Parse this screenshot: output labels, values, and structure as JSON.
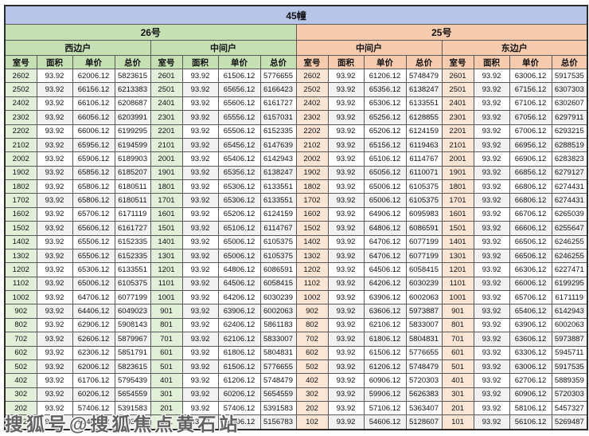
{
  "watermark": "搜狐号@搜狐焦点黄石站",
  "colors": {
    "title_bg": "#b7c5e9",
    "green_header_bg": "#c5e0b3",
    "orange_header_bg": "#f7cbad",
    "green_room_bg": "#e2efd9",
    "peach_room_bg": "#fbe5d5",
    "alt_row_bg": "#f2f2f2",
    "border": "#595959"
  },
  "table": {
    "title": "45幢",
    "groups": [
      {
        "label": "26号"
      },
      {
        "label": "25号"
      }
    ],
    "unit_headers": [
      "西边户",
      "中间户",
      "中间户",
      "东边户"
    ],
    "col_headers": [
      "室号",
      "面积",
      "单价",
      "总价"
    ],
    "rows": [
      [
        [
          "2602",
          "93.92",
          "62006.12",
          "5823615"
        ],
        [
          "2601",
          "93.92",
          "61506.12",
          "5776655"
        ],
        [
          "2602",
          "93.92",
          "61206.12",
          "5748479"
        ],
        [
          "2601",
          "93.92",
          "63006.12",
          "5917535"
        ]
      ],
      [
        [
          "2502",
          "93.92",
          "66156.12",
          "6213383"
        ],
        [
          "2501",
          "93.92",
          "65656.12",
          "6166423"
        ],
        [
          "2502",
          "93.92",
          "65356.12",
          "6138247"
        ],
        [
          "2501",
          "93.92",
          "67156.12",
          "6307303"
        ]
      ],
      [
        [
          "2402",
          "93.92",
          "66106.12",
          "6208687"
        ],
        [
          "2401",
          "93.92",
          "65606.12",
          "6161727"
        ],
        [
          "2402",
          "93.92",
          "65306.12",
          "6133551"
        ],
        [
          "2401",
          "93.92",
          "67106.12",
          "6302607"
        ]
      ],
      [
        [
          "2302",
          "93.92",
          "66056.12",
          "6203991"
        ],
        [
          "2301",
          "93.92",
          "65556.12",
          "6157031"
        ],
        [
          "2302",
          "93.92",
          "65256.12",
          "6128855"
        ],
        [
          "2301",
          "93.92",
          "67056.12",
          "6297911"
        ]
      ],
      [
        [
          "2202",
          "93.92",
          "66006.12",
          "6199295"
        ],
        [
          "2201",
          "93.92",
          "65506.12",
          "6152335"
        ],
        [
          "2202",
          "93.92",
          "65206.12",
          "6124159"
        ],
        [
          "2201",
          "93.92",
          "67006.12",
          "6293215"
        ]
      ],
      [
        [
          "2102",
          "93.92",
          "65956.12",
          "6194599"
        ],
        [
          "2101",
          "93.92",
          "65456.12",
          "6147639"
        ],
        [
          "2102",
          "93.92",
          "65156.12",
          "6119463"
        ],
        [
          "2101",
          "93.92",
          "66956.12",
          "6288519"
        ]
      ],
      [
        [
          "2002",
          "93.92",
          "65906.12",
          "6189903"
        ],
        [
          "2001",
          "93.92",
          "65406.12",
          "6142943"
        ],
        [
          "2002",
          "93.92",
          "65106.12",
          "6114767"
        ],
        [
          "2001",
          "93.92",
          "66906.12",
          "6283823"
        ]
      ],
      [
        [
          "1902",
          "93.92",
          "65856.12",
          "6185207"
        ],
        [
          "1901",
          "93.92",
          "65356.12",
          "6138247"
        ],
        [
          "1902",
          "93.92",
          "65056.12",
          "6110071"
        ],
        [
          "1901",
          "93.92",
          "66856.12",
          "6279127"
        ]
      ],
      [
        [
          "1802",
          "93.92",
          "65806.12",
          "6180511"
        ],
        [
          "1801",
          "93.92",
          "65306.12",
          "6133551"
        ],
        [
          "1802",
          "93.92",
          "65006.12",
          "6105375"
        ],
        [
          "1801",
          "93.92",
          "66806.12",
          "6274431"
        ]
      ],
      [
        [
          "1702",
          "93.92",
          "65806.12",
          "6180511"
        ],
        [
          "1701",
          "93.92",
          "65306.12",
          "6133551"
        ],
        [
          "1702",
          "93.92",
          "65006.12",
          "6105375"
        ],
        [
          "1701",
          "93.92",
          "66806.12",
          "6274431"
        ]
      ],
      [
        [
          "1602",
          "93.92",
          "65706.12",
          "6171119"
        ],
        [
          "1601",
          "93.92",
          "65206.12",
          "6124159"
        ],
        [
          "1602",
          "93.92",
          "64906.12",
          "6095983"
        ],
        [
          "1601",
          "93.92",
          "66706.12",
          "6265039"
        ]
      ],
      [
        [
          "1502",
          "93.92",
          "65606.12",
          "6161727"
        ],
        [
          "1501",
          "93.92",
          "65106.12",
          "6114767"
        ],
        [
          "1502",
          "93.92",
          "64806.12",
          "6086591"
        ],
        [
          "1501",
          "93.92",
          "66606.12",
          "6255647"
        ]
      ],
      [
        [
          "1402",
          "93.92",
          "65506.12",
          "6152335"
        ],
        [
          "1401",
          "93.92",
          "65006.12",
          "6105375"
        ],
        [
          "1402",
          "93.92",
          "64706.12",
          "6077199"
        ],
        [
          "1401",
          "93.92",
          "66506.12",
          "6246255"
        ]
      ],
      [
        [
          "1302",
          "93.92",
          "65506.12",
          "6152335"
        ],
        [
          "1301",
          "93.92",
          "65006.12",
          "6105375"
        ],
        [
          "1302",
          "93.92",
          "64706.12",
          "6077199"
        ],
        [
          "1301",
          "93.92",
          "66506.12",
          "6246255"
        ]
      ],
      [
        [
          "1202",
          "93.92",
          "65306.12",
          "6133551"
        ],
        [
          "1201",
          "93.92",
          "64806.12",
          "6086591"
        ],
        [
          "1202",
          "93.92",
          "64506.12",
          "6058415"
        ],
        [
          "1201",
          "93.92",
          "66306.12",
          "6227471"
        ]
      ],
      [
        [
          "1102",
          "93.92",
          "65006.12",
          "6105375"
        ],
        [
          "1101",
          "93.92",
          "64506.12",
          "6058415"
        ],
        [
          "1102",
          "93.92",
          "64206.12",
          "6030239"
        ],
        [
          "1101",
          "93.92",
          "66006.12",
          "6199295"
        ]
      ],
      [
        [
          "1002",
          "93.92",
          "64706.12",
          "6077199"
        ],
        [
          "1001",
          "93.92",
          "64206.12",
          "6030239"
        ],
        [
          "1002",
          "93.92",
          "63906.12",
          "6002063"
        ],
        [
          "1001",
          "93.92",
          "65706.12",
          "6171119"
        ]
      ],
      [
        [
          "902",
          "93.92",
          "64406.12",
          "6049023"
        ],
        [
          "901",
          "93.92",
          "63906.12",
          "6002063"
        ],
        [
          "902",
          "93.92",
          "63606.12",
          "5973887"
        ],
        [
          "901",
          "93.92",
          "65406.12",
          "6142943"
        ]
      ],
      [
        [
          "802",
          "93.92",
          "62906.12",
          "5908143"
        ],
        [
          "801",
          "93.92",
          "62406.12",
          "5861183"
        ],
        [
          "802",
          "93.92",
          "62106.12",
          "5833007"
        ],
        [
          "801",
          "93.92",
          "63906.12",
          "6002063"
        ]
      ],
      [
        [
          "702",
          "93.92",
          "62606.12",
          "5879967"
        ],
        [
          "701",
          "93.92",
          "62106.12",
          "5833007"
        ],
        [
          "702",
          "93.92",
          "61806.12",
          "5804831"
        ],
        [
          "701",
          "93.92",
          "63606.12",
          "5973887"
        ]
      ],
      [
        [
          "602",
          "93.92",
          "62306.12",
          "5851791"
        ],
        [
          "601",
          "93.92",
          "61806.12",
          "5804831"
        ],
        [
          "602",
          "93.92",
          "61506.12",
          "5776655"
        ],
        [
          "601",
          "93.92",
          "63306.12",
          "5945711"
        ]
      ],
      [
        [
          "502",
          "93.92",
          "62006.12",
          "5823615"
        ],
        [
          "501",
          "93.92",
          "61506.12",
          "5776655"
        ],
        [
          "502",
          "93.92",
          "61206.12",
          "5748479"
        ],
        [
          "501",
          "93.92",
          "63006.12",
          "5917535"
        ]
      ],
      [
        [
          "402",
          "93.92",
          "61706.12",
          "5795439"
        ],
        [
          "401",
          "93.92",
          "61206.12",
          "5748479"
        ],
        [
          "402",
          "93.92",
          "60906.12",
          "5720303"
        ],
        [
          "401",
          "93.92",
          "62706.12",
          "5889359"
        ]
      ],
      [
        [
          "302",
          "93.92",
          "60206.12",
          "5654559"
        ],
        [
          "301",
          "93.92",
          "60206.12",
          "5654559"
        ],
        [
          "302",
          "93.92",
          "59906.12",
          "5626383"
        ],
        [
          "301",
          "93.92",
          "60906.12",
          "5720303"
        ]
      ],
      [
        [
          "202",
          "93.92",
          "57406.12",
          "5391583"
        ],
        [
          "201",
          "93.92",
          "57406.12",
          "5391583"
        ],
        [
          "202",
          "93.92",
          "57106.12",
          "5363407"
        ],
        [
          "201",
          "93.92",
          "58106.12",
          "5457327"
        ]
      ],
      [
        [
          "102",
          "93.92",
          "55406.12",
          "5203743"
        ],
        [
          "101",
          "93.92",
          "54906.12",
          "5156783"
        ],
        [
          "102",
          "93.92",
          "54606.12",
          "5128607"
        ],
        [
          "101",
          "93.92",
          "56106.12",
          "5269487"
        ]
      ]
    ]
  }
}
